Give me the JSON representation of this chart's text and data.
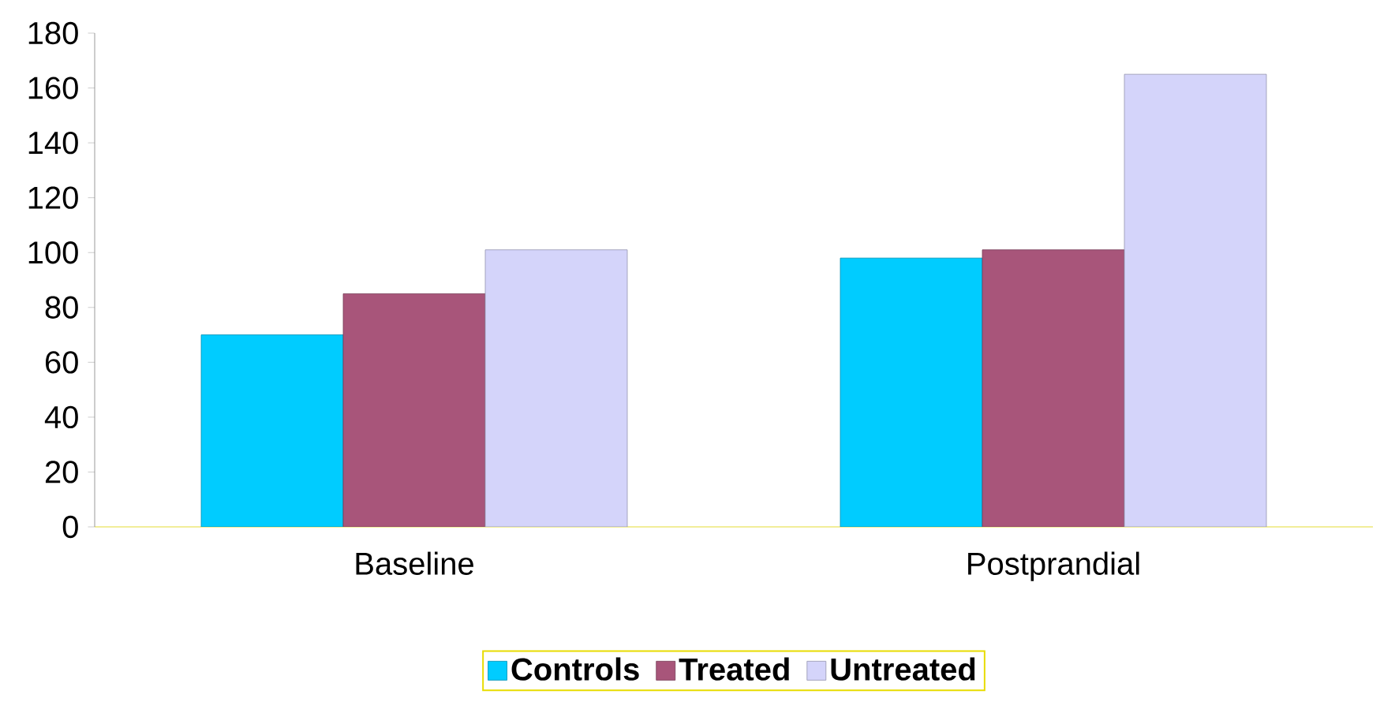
{
  "chart_data": {
    "type": "bar",
    "categories": [
      "Baseline",
      "Postprandial"
    ],
    "series": [
      {
        "name": "Controls",
        "color": "#00ccff",
        "values": [
          70,
          98
        ]
      },
      {
        "name": "Treated",
        "color": "#a8557a",
        "values": [
          85,
          101
        ]
      },
      {
        "name": "Untreated",
        "color": "#d4d4fa",
        "values": [
          101,
          165
        ]
      }
    ],
    "ylim": [
      0,
      180
    ],
    "yticks": [
      0,
      20,
      40,
      60,
      80,
      100,
      120,
      140,
      160,
      180
    ],
    "legend": "bottom"
  }
}
